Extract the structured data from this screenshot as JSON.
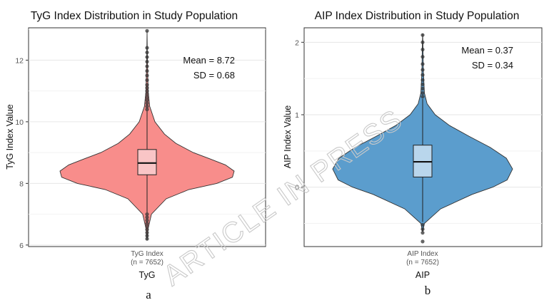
{
  "chart_data": [
    {
      "type": "violin",
      "title": "TyG Index Distribution in Study Population",
      "xlabel": "TyG",
      "ylabel": "TyG Index Value",
      "category": "TyG Index",
      "n_label": "(n = 7652)",
      "ylim": [
        5.95,
        13.05
      ],
      "yticks": [
        6,
        8,
        10,
        12
      ],
      "ytick_labels": [
        "6",
        "8",
        "10",
        "12"
      ],
      "mean_label": "Mean = 8.72",
      "sd_label": "SD = 0.68",
      "fill": "#f88d8b",
      "box_fill": "#f9c5c6",
      "box": {
        "q1": 8.28,
        "median": 8.66,
        "q3": 9.1,
        "whisker_low": 7.05,
        "whisker_high": 10.35
      },
      "outliers": [
        6.2,
        6.3,
        6.4,
        6.5,
        6.6,
        6.7,
        6.8,
        6.9,
        7.0,
        10.4,
        10.5,
        10.6,
        10.7,
        10.8,
        10.9,
        11.0,
        11.1,
        11.2,
        11.35,
        11.5,
        11.65,
        11.8,
        11.95,
        12.1,
        12.25,
        12.4,
        12.95
      ],
      "density": [
        [
          6.15,
          0.0
        ],
        [
          6.5,
          0.01
        ],
        [
          7.0,
          0.05
        ],
        [
          7.5,
          0.22
        ],
        [
          7.8,
          0.48
        ],
        [
          8.0,
          0.8
        ],
        [
          8.2,
          0.98
        ],
        [
          8.4,
          1.0
        ],
        [
          8.6,
          0.9
        ],
        [
          8.8,
          0.72
        ],
        [
          9.0,
          0.53
        ],
        [
          9.3,
          0.33
        ],
        [
          9.6,
          0.2
        ],
        [
          10.0,
          0.09
        ],
        [
          10.5,
          0.03
        ],
        [
          11.0,
          0.012
        ],
        [
          12.0,
          0.004
        ],
        [
          12.95,
          0.0
        ]
      ],
      "panel_label": "a"
    },
    {
      "type": "violin",
      "title": "AIP Index Distribution in Study Population",
      "xlabel": "AIP",
      "ylabel": "AIP Index Value",
      "category": "AIP Index",
      "n_label": "(n = 7652)",
      "ylim": [
        -0.82,
        2.2
      ],
      "yticks": [
        0,
        1,
        2
      ],
      "ytick_labels": [
        "0",
        "1",
        "2"
      ],
      "mean_label": "Mean = 0.37",
      "sd_label": "SD = 0.34",
      "fill": "#5b9dcd",
      "box_fill": "#b9d6ec",
      "box": {
        "q1": 0.14,
        "median": 0.35,
        "q3": 0.58,
        "whisker_low": -0.48,
        "whisker_high": 1.22
      },
      "outliers": [
        -0.52,
        -0.58,
        -0.63,
        -0.75,
        1.25,
        1.3,
        1.36,
        1.42,
        1.48,
        1.55,
        1.62,
        1.7,
        1.8,
        1.9,
        2.0,
        2.1
      ],
      "density": [
        [
          -0.62,
          0.0
        ],
        [
          -0.5,
          0.02
        ],
        [
          -0.3,
          0.2
        ],
        [
          -0.1,
          0.55
        ],
        [
          0.0,
          0.78
        ],
        [
          0.1,
          0.94
        ],
        [
          0.25,
          1.0
        ],
        [
          0.4,
          0.93
        ],
        [
          0.55,
          0.75
        ],
        [
          0.7,
          0.52
        ],
        [
          0.85,
          0.3
        ],
        [
          1.0,
          0.14
        ],
        [
          1.15,
          0.05
        ],
        [
          1.3,
          0.02
        ],
        [
          1.6,
          0.008
        ],
        [
          2.0,
          0.003
        ],
        [
          2.12,
          0.0
        ]
      ],
      "panel_label": "b"
    }
  ],
  "watermark": "ARTICLE IN PRESS"
}
